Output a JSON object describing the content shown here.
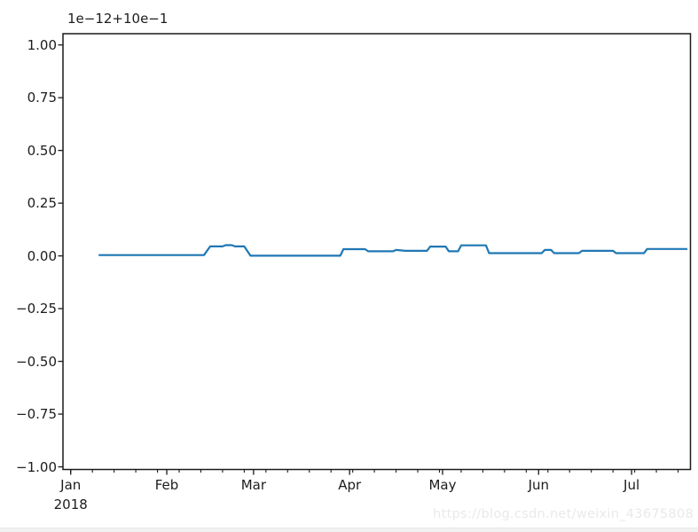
{
  "figure": {
    "background": "#ffffff",
    "watermark": "https://blog.csdn.net/weixin_43675808",
    "footer_bar_color": "#f2f2f2"
  },
  "chart_data": {
    "type": "line",
    "title": "",
    "xlabel": "",
    "ylabel": "",
    "y_offset_label": "1e−12+10e−1",
    "axis_color": "#1a1a1a",
    "grid": false,
    "legend": "none",
    "ylim": [
      -1.0126,
      1.0534
    ],
    "y_ticks": [
      1.0,
      0.75,
      0.5,
      0.25,
      0.0,
      -0.25,
      -0.5,
      -0.75,
      -1.0
    ],
    "y_tick_labels": [
      "1.00",
      "0.75",
      "0.50",
      "0.25",
      "0.00",
      "−0.25",
      "−0.50",
      "−0.75",
      "−1.00"
    ],
    "x_range_days": [
      -2.5,
      200
    ],
    "x_major_days": [
      0,
      31,
      59,
      90,
      120,
      151,
      181
    ],
    "x_tick_labels": [
      "Jan",
      "Feb",
      "Mar",
      "Apr",
      "May",
      "Jun",
      "Jul"
    ],
    "x_year_label": "2018",
    "x_minor_interval_days": 7,
    "series": [
      {
        "name": "series-0",
        "color": "#1f77b4",
        "points": [
          [
            "2018-01-10",
            0.004
          ],
          [
            "2018-02-13",
            0.004
          ],
          [
            "2018-02-15",
            0.045
          ],
          [
            "2018-02-19",
            0.045
          ],
          [
            "2018-02-20",
            0.051
          ],
          [
            "2018-02-22",
            0.051
          ],
          [
            "2018-02-23",
            0.045
          ],
          [
            "2018-02-26",
            0.045
          ],
          [
            "2018-02-28",
            0.001
          ],
          [
            "2018-03-29",
            0.001
          ],
          [
            "2018-03-30",
            0.032
          ],
          [
            "2018-04-06",
            0.032
          ],
          [
            "2018-04-07",
            0.022
          ],
          [
            "2018-04-15",
            0.022
          ],
          [
            "2018-04-16",
            0.028
          ],
          [
            "2018-04-19",
            0.024
          ],
          [
            "2018-04-26",
            0.024
          ],
          [
            "2018-04-27",
            0.044
          ],
          [
            "2018-05-02",
            0.044
          ],
          [
            "2018-05-03",
            0.022
          ],
          [
            "2018-05-06",
            0.022
          ],
          [
            "2018-05-07",
            0.05
          ],
          [
            "2018-05-15",
            0.05
          ],
          [
            "2018-05-16",
            0.013
          ],
          [
            "2018-06-02",
            0.013
          ],
          [
            "2018-06-03",
            0.028
          ],
          [
            "2018-06-05",
            0.028
          ],
          [
            "2018-06-06",
            0.013
          ],
          [
            "2018-06-14",
            0.013
          ],
          [
            "2018-06-15",
            0.024
          ],
          [
            "2018-06-25",
            0.024
          ],
          [
            "2018-06-26",
            0.013
          ],
          [
            "2018-07-05",
            0.013
          ],
          [
            "2018-07-06",
            0.033
          ],
          [
            "2018-07-19",
            0.033
          ]
        ]
      }
    ]
  }
}
